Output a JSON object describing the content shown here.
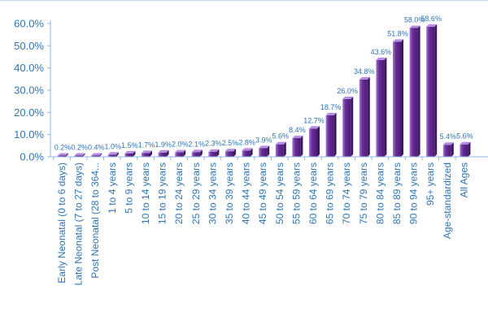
{
  "chart_data": {
    "type": "bar",
    "title": "",
    "xlabel": "",
    "ylabel": "",
    "ylim": [
      0,
      60
    ],
    "yticks": [
      0,
      10,
      20,
      30,
      40,
      50,
      60
    ],
    "ytick_labels": [
      "0.0%",
      "10.0%",
      "20.0%",
      "30.0%",
      "40.0%",
      "50.0%",
      "60.0%"
    ],
    "grid": false,
    "legend": "none",
    "bar_color": "#6a2d9a",
    "bar_highlight": "#a57ad6",
    "label_color": "#2e75b6",
    "axis_color": "#8eb4e3",
    "categories": [
      "Early Neonatal (0 to 6 days)",
      "Late Neonatal (7 to 27 days)",
      "Post Neonatal (28 to 364...",
      "1 to 4 years",
      "5 to 9 years",
      "10 to 14 years",
      "15 to 19 years",
      "20 to 24 years",
      "25 to 29 years",
      "30 to 34 years",
      "35 to 39 years",
      "40 to 44 years",
      "45 to 49 years",
      "50 to 54 years",
      "55 to 59 years",
      "60 to 64 years",
      "65 to 69 years",
      "70 to 74 years",
      "75 to 79 years",
      "80 to 84 years",
      "85 to 89 years",
      "90 to 94 years",
      "95+ years",
      "Age-standardized",
      "All Ages"
    ],
    "values": [
      0.2,
      0.2,
      0.4,
      1.0,
      1.5,
      1.7,
      1.9,
      2.0,
      2.1,
      2.3,
      2.5,
      2.8,
      3.9,
      5.6,
      8.4,
      12.7,
      18.7,
      26.0,
      34.8,
      43.6,
      51.8,
      58.0,
      58.6,
      5.4,
      5.6
    ],
    "data_labels": [
      "0.2%",
      "0.2%",
      "0.4%",
      "1.0%",
      "1.5%",
      "1.7%",
      "1.9%",
      "2.0%",
      "2.1%",
      "2.3%",
      "2.5%",
      "2.8%",
      "3.9%",
      "5.6%",
      "8.4%",
      "12.7%",
      "18.7%",
      "26.0%",
      "34.8%",
      "43.6%",
      "51.8%",
      "58.0%",
      "58.6%",
      "5.4%",
      "5.6%"
    ]
  }
}
